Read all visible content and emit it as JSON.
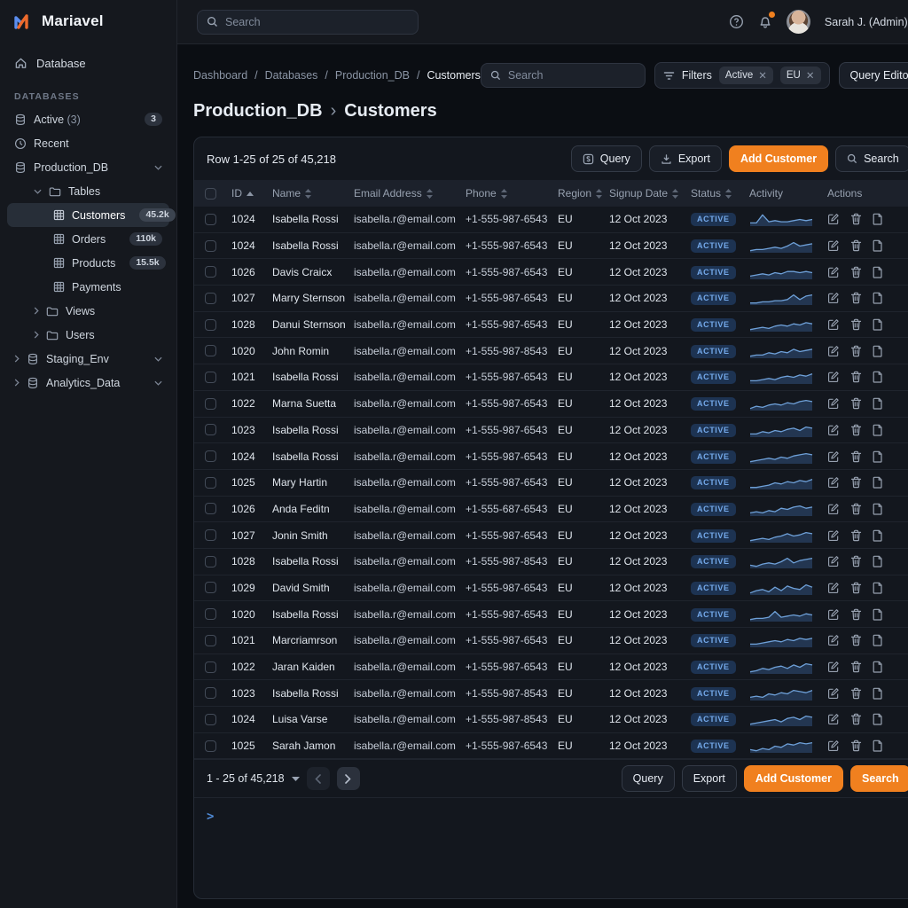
{
  "brand": {
    "name": "Mariavel",
    "logo_blue": "#5b8def",
    "logo_orange": "#ed6a2c"
  },
  "topbar": {
    "search_placeholder": "Search",
    "user_name": "Sarah J. (Admin)"
  },
  "sidebar": {
    "home_label": "Database",
    "section_label": "DATABASES",
    "items": [
      {
        "label": "Active",
        "suffix": "(3)",
        "icon": "database-icon",
        "badge": "3",
        "level": 0
      },
      {
        "label": "Recent",
        "icon": "clock-icon",
        "level": 0
      },
      {
        "label": "Production_DB",
        "icon": "database-icon",
        "level": 0,
        "chevron_right": "down"
      },
      {
        "label": "Tables",
        "icon": "folder-icon",
        "level": 1,
        "chevron_left": "down"
      },
      {
        "label": "Customers",
        "icon": "table-icon",
        "level": 2,
        "badge": "45.2k",
        "selected": true
      },
      {
        "label": "Orders",
        "icon": "table-icon",
        "level": 2,
        "badge": "110k"
      },
      {
        "label": "Products",
        "icon": "table-icon",
        "level": 2,
        "badge": "15.5k"
      },
      {
        "label": "Payments",
        "icon": "table-icon",
        "level": 2
      },
      {
        "label": "Views",
        "icon": "folder-icon",
        "level": 1,
        "chevron_left": "right"
      },
      {
        "label": "Users",
        "icon": "folder-icon",
        "level": 1,
        "chevron_left": "right"
      },
      {
        "label": "Staging_Env",
        "icon": "database-icon",
        "level": 0,
        "chevron_left": "right",
        "chevron_right": "down"
      },
      {
        "label": "Analytics_Data",
        "icon": "database-icon",
        "level": 0,
        "chevron_left": "right",
        "chevron_right": "down"
      }
    ]
  },
  "breadcrumb": [
    "Dashboard",
    "Databases",
    "Production_DB",
    "Customers"
  ],
  "header": {
    "search_placeholder": "Search",
    "filters_label": "Filters",
    "filter_chips": [
      "Active",
      "EU"
    ],
    "query_editor_label": "Query Editor",
    "title_db": "Production_DB",
    "title_sep": "›",
    "title_table": "Customers"
  },
  "toolbar": {
    "row_info": "Row 1-25 of  25 of 45,218",
    "query_label": "Query",
    "export_label": "Export",
    "add_customer_label": "Add Customer",
    "search_label": "Search"
  },
  "table": {
    "columns": [
      {
        "label": "ID",
        "sort": "asc"
      },
      {
        "label": "Name",
        "sort": "both"
      },
      {
        "label": "Email Address",
        "sort": "both"
      },
      {
        "label": "Phone",
        "sort": "both"
      },
      {
        "label": "Region",
        "sort": "both"
      },
      {
        "label": "Signup Date",
        "sort": "both"
      },
      {
        "label": "Status",
        "sort": "both"
      },
      {
        "label": "Activity",
        "sort": "none"
      },
      {
        "label": "Actions",
        "sort": "none"
      }
    ],
    "rows": [
      {
        "id": "1024",
        "name": "Isabella Rossi",
        "email": "isabella.r@email.com",
        "phone": "+1-555-987-6543",
        "region": "EU",
        "signup": "12 Oct 2023",
        "status": "ACTIVE",
        "activity": [
          2,
          2,
          9,
          3,
          4,
          3,
          3,
          4,
          5,
          4,
          5
        ]
      },
      {
        "id": "1024",
        "name": "Isabella Rossi",
        "email": "isabella.r@email.com",
        "phone": "+1-555-987-6543",
        "region": "EU",
        "signup": "12 Oct 2023",
        "status": "ACTIVE",
        "activity": [
          1,
          2,
          2,
          3,
          4,
          3,
          5,
          8,
          5,
          6,
          7
        ]
      },
      {
        "id": "1026",
        "name": "Davis Craicx",
        "email": "isabella.r@email.com",
        "phone": "+1-555-987-6543",
        "region": "EU",
        "signup": "12 Oct 2023",
        "status": "ACTIVE",
        "activity": [
          2,
          3,
          4,
          3,
          5,
          4,
          6,
          6,
          5,
          6,
          5
        ]
      },
      {
        "id": "1027",
        "name": "Marry Sternson",
        "email": "isabella.r@email.com",
        "phone": "+1-555-987-6543",
        "region": "EU",
        "signup": "12 Oct 2023",
        "status": "ACTIVE",
        "activity": [
          1,
          1,
          2,
          2,
          3,
          3,
          4,
          8,
          4,
          7,
          8
        ]
      },
      {
        "id": "1028",
        "name": "Danui Sternson",
        "email": "isabella.r@email.com",
        "phone": "+1-555-987-6543",
        "region": "EU",
        "signup": "12 Oct 2023",
        "status": "ACTIVE",
        "activity": [
          1,
          2,
          3,
          2,
          4,
          5,
          4,
          6,
          5,
          7,
          6
        ]
      },
      {
        "id": "1020",
        "name": "John Romin",
        "email": "isabella.r@email.com",
        "phone": "+1-555-987-8543",
        "region": "EU",
        "signup": "12 Oct 2023",
        "status": "ACTIVE",
        "activity": [
          1,
          2,
          2,
          4,
          3,
          5,
          4,
          7,
          5,
          6,
          7
        ]
      },
      {
        "id": "1021",
        "name": "Isabella Rossi",
        "email": "isabella.r@email.com",
        "phone": "+1-555-987-6543",
        "region": "EU",
        "signup": "12 Oct 2023",
        "status": "ACTIVE",
        "activity": [
          2,
          2,
          3,
          4,
          3,
          5,
          6,
          5,
          7,
          6,
          8
        ]
      },
      {
        "id": "1022",
        "name": "Marna Suetta",
        "email": "isabella.r@email.com",
        "phone": "+1-555-987-6543",
        "region": "EU",
        "signup": "12 Oct 2023",
        "status": "ACTIVE",
        "activity": [
          1,
          3,
          2,
          4,
          5,
          4,
          6,
          5,
          7,
          8,
          7
        ]
      },
      {
        "id": "1023",
        "name": "Isabella Rossi",
        "email": "isabella.r@email.com",
        "phone": "+1-555-987-6543",
        "region": "EU",
        "signup": "12 Oct 2023",
        "status": "ACTIVE",
        "activity": [
          2,
          2,
          4,
          3,
          5,
          4,
          6,
          7,
          5,
          8,
          7
        ]
      },
      {
        "id": "1024",
        "name": "Isabella Rossi",
        "email": "isabella.r@email.com",
        "phone": "+1-555-987-6543",
        "region": "EU",
        "signup": "12 Oct 2023",
        "status": "ACTIVE",
        "activity": [
          1,
          2,
          3,
          4,
          3,
          5,
          4,
          6,
          7,
          8,
          7
        ]
      },
      {
        "id": "1025",
        "name": "Mary Hartin",
        "email": "isabella.r@email.com",
        "phone": "+1-555-987-6543",
        "region": "EU",
        "signup": "12 Oct 2023",
        "status": "ACTIVE",
        "activity": [
          1,
          1,
          2,
          3,
          5,
          4,
          6,
          5,
          7,
          6,
          8
        ]
      },
      {
        "id": "1026",
        "name": "Anda Feditn",
        "email": "isabella.r@email.com",
        "phone": "+1-555-687-6543",
        "region": "EU",
        "signup": "12 Oct 2023",
        "status": "ACTIVE",
        "activity": [
          2,
          3,
          2,
          4,
          3,
          6,
          5,
          7,
          8,
          6,
          7
        ]
      },
      {
        "id": "1027",
        "name": "Jonin Smith",
        "email": "isabella.r@email.com",
        "phone": "+1-555-987-6543",
        "region": "EU",
        "signup": "12 Oct 2023",
        "status": "ACTIVE",
        "activity": [
          1,
          2,
          3,
          2,
          4,
          5,
          7,
          5,
          6,
          8,
          7
        ]
      },
      {
        "id": "1028",
        "name": "Isabella Rossi",
        "email": "isabella.r@email.com",
        "phone": "+1-555-987-8543",
        "region": "EU",
        "signup": "12 Oct 2023",
        "status": "ACTIVE",
        "activity": [
          2,
          1,
          3,
          4,
          3,
          5,
          8,
          4,
          6,
          7,
          8
        ]
      },
      {
        "id": "1029",
        "name": "David Smith",
        "email": "isabella.r@email.com",
        "phone": "+1-555-987-6543",
        "region": "EU",
        "signup": "12 Oct 2023",
        "status": "ACTIVE",
        "activity": [
          1,
          3,
          4,
          2,
          6,
          3,
          7,
          5,
          4,
          8,
          6
        ]
      },
      {
        "id": "1020",
        "name": "Isabella Rossi",
        "email": "isabella.r@email.com",
        "phone": "+1-555-987-6543",
        "region": "EU",
        "signup": "12 Oct 2023",
        "status": "ACTIVE",
        "activity": [
          1,
          2,
          2,
          3,
          8,
          3,
          4,
          5,
          4,
          6,
          5
        ]
      },
      {
        "id": "1021",
        "name": "Marcriamrson",
        "email": "isabella.r@email.com",
        "phone": "+1-555-987-6543",
        "region": "EU",
        "signup": "12 Oct 2023",
        "status": "ACTIVE",
        "activity": [
          2,
          2,
          3,
          4,
          5,
          4,
          6,
          5,
          7,
          6,
          7
        ]
      },
      {
        "id": "1022",
        "name": "Jaran Kaiden",
        "email": "isabella.r@email.com",
        "phone": "+1-555-987-6543",
        "region": "EU",
        "signup": "12 Oct 2023",
        "status": "ACTIVE",
        "activity": [
          1,
          2,
          4,
          3,
          5,
          6,
          4,
          7,
          5,
          8,
          7
        ]
      },
      {
        "id": "1023",
        "name": "Isabella Rossi",
        "email": "isabella.r@email.com",
        "phone": "+1-555-987-8543",
        "region": "EU",
        "signup": "12 Oct 2023",
        "status": "ACTIVE",
        "activity": [
          2,
          3,
          2,
          5,
          4,
          6,
          5,
          8,
          7,
          6,
          8
        ]
      },
      {
        "id": "1024",
        "name": "Luisa Varse",
        "email": "isabella.r@email.com",
        "phone": "+1-555-987-8543",
        "region": "EU",
        "signup": "12 Oct 2023",
        "status": "ACTIVE",
        "activity": [
          1,
          2,
          3,
          4,
          5,
          3,
          6,
          7,
          5,
          8,
          7
        ]
      },
      {
        "id": "1025",
        "name": "Sarah Jamon",
        "email": "isabella.r@email.com",
        "phone": "+1-555-987-6543",
        "region": "EU",
        "signup": "12 Oct 2023",
        "status": "ACTIVE",
        "activity": [
          2,
          1,
          3,
          2,
          5,
          4,
          7,
          6,
          8,
          7,
          8
        ]
      }
    ]
  },
  "pagination": {
    "range": "1 - 25 of 45,218",
    "query_label": "Query",
    "export_label": "Export",
    "add_customer_label": "Add Customer",
    "search_label": "Search"
  },
  "console": {
    "prompt": ">"
  },
  "colors": {
    "accent_orange": "#f0801f",
    "accent_blue": "#4f8ad6",
    "status_active_bg": "#1d3352",
    "status_active_text": "#74a9ea",
    "sparkline_stroke": "#6ea0d8",
    "sparkline_fill": "#31517c"
  }
}
